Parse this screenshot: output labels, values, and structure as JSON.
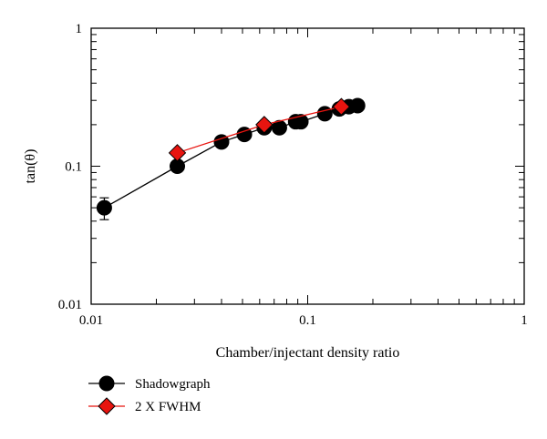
{
  "chart_data": {
    "type": "scatter",
    "xlabel": "Chamber/injectant density ratio",
    "ylabel": "tan(θ)",
    "xscale": "log",
    "yscale": "log",
    "xlim": [
      0.01,
      1
    ],
    "ylim": [
      0.01,
      1
    ],
    "x_ticks": [
      "0.01",
      "0.1",
      "1"
    ],
    "y_ticks": [
      "0.01",
      "0.1",
      "1"
    ],
    "grid": false,
    "legend_position": "bottom-left",
    "series": [
      {
        "name": "Shadowgraph",
        "marker": "circle",
        "color": "#000000",
        "line_color": "#000000",
        "points": [
          {
            "x": 0.0115,
            "y": 0.05,
            "err_low": 0.041,
            "err_high": 0.059
          },
          {
            "x": 0.025,
            "y": 0.1
          },
          {
            "x": 0.04,
            "y": 0.15
          },
          {
            "x": 0.051,
            "y": 0.17
          },
          {
            "x": 0.063,
            "y": 0.19
          },
          {
            "x": 0.074,
            "y": 0.19
          },
          {
            "x": 0.088,
            "y": 0.21
          },
          {
            "x": 0.093,
            "y": 0.21
          },
          {
            "x": 0.12,
            "y": 0.24
          },
          {
            "x": 0.14,
            "y": 0.26
          },
          {
            "x": 0.155,
            "y": 0.27
          },
          {
            "x": 0.17,
            "y": 0.275
          }
        ]
      },
      {
        "name": "2 X FWHM",
        "marker": "diamond",
        "color": "#e8140f",
        "line_color": "#e8140f",
        "points": [
          {
            "x": 0.025,
            "y": 0.125
          },
          {
            "x": 0.063,
            "y": 0.2
          },
          {
            "x": 0.143,
            "y": 0.27
          }
        ]
      }
    ]
  }
}
